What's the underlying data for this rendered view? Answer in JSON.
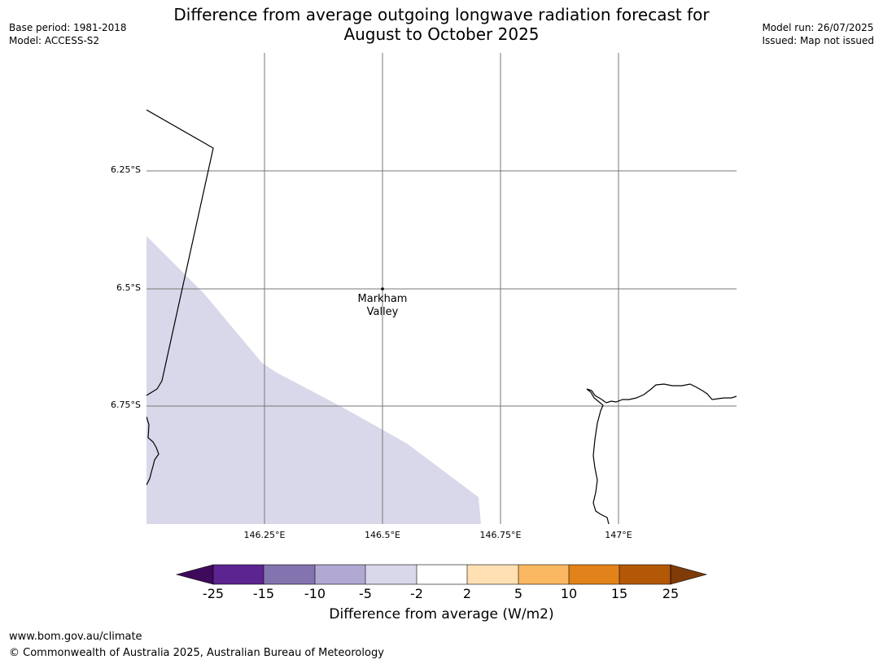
{
  "header": {
    "title_line1": "Difference from average outgoing longwave radiation forecast for",
    "title_line2": "August to October 2025",
    "base_period": "Base period: 1981-2018",
    "model": "Model: ACCESS-S2",
    "model_run": "Model run: 26/07/2025",
    "issued": "Issued: Map not issued"
  },
  "map": {
    "latitude_labels": [
      "6.25°S",
      "6.5°S",
      "6.75°S"
    ],
    "longitude_labels": [
      "146.25°E",
      "146.5°E",
      "146.75°E",
      "147°E"
    ],
    "place": {
      "name_line1": "Markham",
      "name_line2": "Valley",
      "lon": 146.5,
      "lat": -6.5
    },
    "shaded_category": "-5 to -2",
    "shade_color": "#d8d8ea"
  },
  "colorbar": {
    "label": "Difference from average (W/m2)",
    "ticks": [
      "-25",
      "-15",
      "-10",
      "-5",
      "-2",
      "2",
      "5",
      "10",
      "15",
      "25"
    ],
    "colors": [
      "#3f0a5c",
      "#5b2490",
      "#8374b0",
      "#b1a9d3",
      "#d8d8ea",
      "#ffffff",
      "#fee0b3",
      "#fbb862",
      "#e2821a",
      "#b35806",
      "#7f3b08"
    ]
  },
  "footer": {
    "url": "www.bom.gov.au/climate",
    "copyright": "© Commonwealth of Australia 2025, Australian Bureau of Meteorology"
  }
}
